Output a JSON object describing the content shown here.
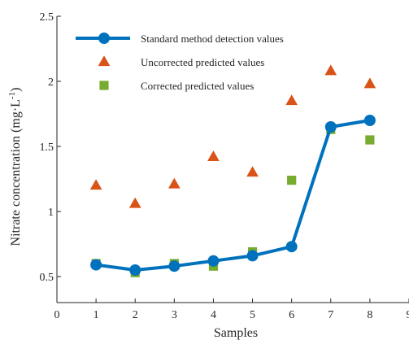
{
  "chart_data": {
    "type": "line",
    "xlabel": "Samples",
    "ylabel_base": "Nitrate concentration (mg",
    "ylabel_unit": "·L",
    "ylabel_exp": "-1",
    "ylabel_close": ")",
    "xlim": [
      0,
      9
    ],
    "ylim": [
      0.3,
      2.5
    ],
    "x_ticks": [
      "0",
      "1",
      "2",
      "3",
      "4",
      "5",
      "6",
      "7",
      "8",
      "9"
    ],
    "y_ticks": [
      "0.5",
      "1",
      "1.5",
      "2",
      "2.5"
    ],
    "grid": false,
    "legend_position": "top-left",
    "x": [
      1,
      2,
      3,
      4,
      5,
      6,
      7,
      8
    ],
    "series": [
      {
        "name": "Standard method detection values",
        "marker": "circle",
        "line": true,
        "color": "#0072BD",
        "values": [
          0.59,
          0.55,
          0.58,
          0.62,
          0.66,
          0.73,
          1.65,
          1.7
        ]
      },
      {
        "name": "Uncorrected predicted values",
        "marker": "triangle",
        "line": false,
        "color": "#D95319",
        "values": [
          1.2,
          1.06,
          1.21,
          1.42,
          1.3,
          1.85,
          2.08,
          1.98
        ]
      },
      {
        "name": "Corrected predicted values",
        "marker": "square",
        "line": false,
        "color": "#77AC30",
        "values": [
          0.6,
          0.53,
          0.6,
          0.58,
          0.69,
          1.24,
          1.63,
          1.55
        ]
      }
    ]
  }
}
